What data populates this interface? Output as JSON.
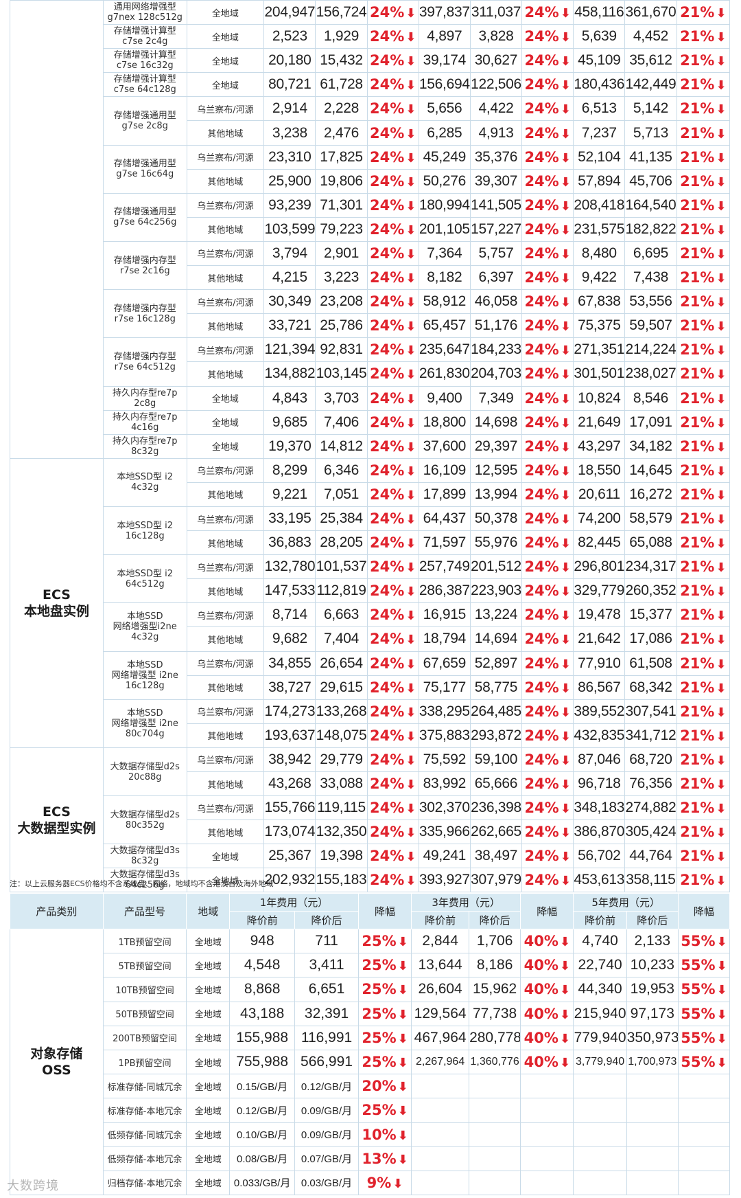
{
  "ecs_groups": [
    {
      "category": "",
      "rows": [
        {
          "model": "通用网络增强型\ng7nex 128c512g",
          "region": "全地域",
          "v": [
            "204,947",
            "156,724",
            "24%",
            "397,837",
            "311,037",
            "24%",
            "458,116",
            "361,670",
            "21%"
          ]
        },
        {
          "model": "存储增强计算型\nc7se 2c4g",
          "region": "全地域",
          "v": [
            "2,523",
            "1,929",
            "24%",
            "4,897",
            "3,828",
            "24%",
            "5,639",
            "4,452",
            "21%"
          ]
        },
        {
          "model": "存储增强计算型\nc7se 16c32g",
          "region": "全地域",
          "v": [
            "20,180",
            "15,432",
            "24%",
            "39,174",
            "30,627",
            "24%",
            "45,109",
            "35,612",
            "21%"
          ]
        },
        {
          "model": "存储增强计算型\nc7se 64c128g",
          "region": "全地域",
          "v": [
            "80,721",
            "61,728",
            "24%",
            "156,694",
            "122,506",
            "24%",
            "180,436",
            "142,449",
            "21%"
          ]
        },
        {
          "model": "存储增强通用型\ng7se 2c8g",
          "region": "乌兰察布/河源",
          "v": [
            "2,914",
            "2,228",
            "24%",
            "5,656",
            "4,422",
            "24%",
            "6,513",
            "5,142",
            "21%"
          ]
        },
        {
          "model": "",
          "region": "其他地域",
          "v": [
            "3,238",
            "2,476",
            "24%",
            "6,285",
            "4,913",
            "24%",
            "7,237",
            "5,713",
            "21%"
          ]
        },
        {
          "model": "存储增强通用型\ng7se 16c64g",
          "region": "乌兰察布/河源",
          "v": [
            "23,310",
            "17,825",
            "24%",
            "45,249",
            "35,376",
            "24%",
            "52,104",
            "41,135",
            "21%"
          ]
        },
        {
          "model": "",
          "region": "其他地域",
          "v": [
            "25,900",
            "19,806",
            "24%",
            "50,276",
            "39,307",
            "24%",
            "57,894",
            "45,706",
            "21%"
          ]
        },
        {
          "model": "存储增强通用型\ng7se 64c256g",
          "region": "乌兰察布/河源",
          "v": [
            "93,239",
            "71,301",
            "24%",
            "180,994",
            "141,505",
            "24%",
            "208,418",
            "164,540",
            "21%"
          ]
        },
        {
          "model": "",
          "region": "其他地域",
          "v": [
            "103,599",
            "79,223",
            "24%",
            "201,105",
            "157,227",
            "24%",
            "231,575",
            "182,822",
            "21%"
          ]
        },
        {
          "model": "存储增强内存型\nr7se 2c16g",
          "region": "乌兰察布/河源",
          "v": [
            "3,794",
            "2,901",
            "24%",
            "7,364",
            "5,757",
            "24%",
            "8,480",
            "6,695",
            "21%"
          ]
        },
        {
          "model": "",
          "region": "其他地域",
          "v": [
            "4,215",
            "3,223",
            "24%",
            "8,182",
            "6,397",
            "24%",
            "9,422",
            "7,438",
            "21%"
          ]
        },
        {
          "model": "存储增强内存型\nr7se 16c128g",
          "region": "乌兰察布/河源",
          "v": [
            "30,349",
            "23,208",
            "24%",
            "58,912",
            "46,058",
            "24%",
            "67,838",
            "53,556",
            "21%"
          ]
        },
        {
          "model": "",
          "region": "其他地域",
          "v": [
            "33,721",
            "25,786",
            "24%",
            "65,457",
            "51,176",
            "24%",
            "75,375",
            "59,507",
            "21%"
          ]
        },
        {
          "model": "存储增强内存型\nr7se 64c512g",
          "region": "乌兰察布/河源",
          "v": [
            "121,394",
            "92,831",
            "24%",
            "235,647",
            "184,233",
            "24%",
            "271,351",
            "214,224",
            "21%"
          ]
        },
        {
          "model": "",
          "region": "其他地域",
          "v": [
            "134,882",
            "103,145",
            "24%",
            "261,830",
            "204,703",
            "24%",
            "301,501",
            "238,027",
            "21%"
          ]
        },
        {
          "model": "持久内存型re7p\n2c8g",
          "region": "全地域",
          "v": [
            "4,843",
            "3,703",
            "24%",
            "9,400",
            "7,349",
            "24%",
            "10,824",
            "8,546",
            "21%"
          ]
        },
        {
          "model": "持久内存型re7p\n4c16g",
          "region": "全地域",
          "v": [
            "9,685",
            "7,406",
            "24%",
            "18,800",
            "14,698",
            "24%",
            "21,649",
            "17,091",
            "21%"
          ]
        },
        {
          "model": "持久内存型re7p\n8c32g",
          "region": "全地域",
          "v": [
            "19,370",
            "14,812",
            "24%",
            "37,600",
            "29,397",
            "24%",
            "43,297",
            "34,182",
            "21%"
          ]
        }
      ]
    },
    {
      "category": "ECS\n本地盘实例",
      "rows": [
        {
          "model": "本地SSD型 i2\n4c32g",
          "region": "乌兰察布/河源",
          "v": [
            "8,299",
            "6,346",
            "24%",
            "16,109",
            "12,595",
            "24%",
            "18,550",
            "14,645",
            "21%"
          ]
        },
        {
          "model": "",
          "region": "其他地域",
          "v": [
            "9,221",
            "7,051",
            "24%",
            "17,899",
            "13,994",
            "24%",
            "20,611",
            "16,272",
            "21%"
          ]
        },
        {
          "model": "本地SSD型 i2\n16c128g",
          "region": "乌兰察布/河源",
          "v": [
            "33,195",
            "25,384",
            "24%",
            "64,437",
            "50,378",
            "24%",
            "74,200",
            "58,579",
            "21%"
          ]
        },
        {
          "model": "",
          "region": "其他地域",
          "v": [
            "36,883",
            "28,205",
            "24%",
            "71,597",
            "55,976",
            "24%",
            "82,445",
            "65,088",
            "21%"
          ]
        },
        {
          "model": "本地SSD型 i2\n64c512g",
          "region": "乌兰察布/河源",
          "v": [
            "132,780",
            "101,537",
            "24%",
            "257,749",
            "201,512",
            "24%",
            "296,801",
            "234,317",
            "21%"
          ]
        },
        {
          "model": "",
          "region": "其他地域",
          "v": [
            "147,533",
            "112,819",
            "24%",
            "286,387",
            "223,903",
            "24%",
            "329,779",
            "260,352",
            "21%"
          ]
        },
        {
          "model": "本地SSD\n网络增强型i2ne\n4c32g",
          "region": "乌兰察布/河源",
          "v": [
            "8,714",
            "6,663",
            "24%",
            "16,915",
            "13,224",
            "24%",
            "19,478",
            "15,377",
            "21%"
          ]
        },
        {
          "model": "",
          "region": "其他地域",
          "v": [
            "9,682",
            "7,404",
            "24%",
            "18,794",
            "14,694",
            "24%",
            "21,642",
            "17,086",
            "21%"
          ]
        },
        {
          "model": "本地SSD\n网络增强型 i2ne\n16c128g",
          "region": "乌兰察布/河源",
          "v": [
            "34,855",
            "26,654",
            "24%",
            "67,659",
            "52,897",
            "24%",
            "77,910",
            "61,508",
            "21%"
          ]
        },
        {
          "model": "",
          "region": "其他地域",
          "v": [
            "38,727",
            "29,615",
            "24%",
            "75,177",
            "58,775",
            "24%",
            "86,567",
            "68,342",
            "21%"
          ]
        },
        {
          "model": "本地SSD\n网络增强型 i2ne\n80c704g",
          "region": "乌兰察布/河源",
          "v": [
            "174,273",
            "133,268",
            "24%",
            "338,295",
            "264,485",
            "24%",
            "389,552",
            "307,541",
            "21%"
          ]
        },
        {
          "model": "",
          "region": "其他地域",
          "v": [
            "193,637",
            "148,075",
            "24%",
            "375,883",
            "293,872",
            "24%",
            "432,835",
            "341,712",
            "21%"
          ]
        }
      ]
    },
    {
      "category": "ECS\n大数据型实例",
      "rows": [
        {
          "model": "大数据存储型d2s\n20c88g",
          "region": "乌兰察布/河源",
          "v": [
            "38,942",
            "29,779",
            "24%",
            "75,592",
            "59,100",
            "24%",
            "87,046",
            "68,720",
            "21%"
          ]
        },
        {
          "model": "",
          "region": "其他地域",
          "v": [
            "43,268",
            "33,088",
            "24%",
            "83,992",
            "65,666",
            "24%",
            "96,718",
            "76,356",
            "21%"
          ]
        },
        {
          "model": "大数据存储型d2s\n80c352g",
          "region": "乌兰察布/河源",
          "v": [
            "155,766",
            "119,115",
            "24%",
            "302,370",
            "236,398",
            "24%",
            "348,183",
            "274,882",
            "21%"
          ]
        },
        {
          "model": "",
          "region": "其他地域",
          "v": [
            "173,074",
            "132,350",
            "24%",
            "335,966",
            "262,665",
            "24%",
            "386,870",
            "305,424",
            "21%"
          ]
        },
        {
          "model": "大数据存储型d3s\n8c32g",
          "region": "全地域",
          "v": [
            "25,367",
            "19,398",
            "24%",
            "49,241",
            "38,497",
            "24%",
            "56,702",
            "44,764",
            "21%"
          ]
        },
        {
          "model": "大数据存储型d3s\n64c256g",
          "region": "全地域",
          "v": [
            "202,932",
            "155,183",
            "24%",
            "393,927",
            "307,979",
            "24%",
            "453,613",
            "358,115",
            "21%"
          ]
        }
      ]
    }
  ],
  "note": "注：以上云服务器ECS价格均不含系统盘、网络，地域均不含港澳台及海外地域",
  "oss": {
    "headers": {
      "category": "产品类别",
      "model": "产品型号",
      "region": "地域",
      "y1": "1年费用（元）",
      "y3": "3年费用（元）",
      "y5": "5年费用（元）",
      "before": "降价前",
      "after": "降价后",
      "drop": "降幅"
    },
    "category": "对象存储\nOSS",
    "rows": [
      {
        "model": "1TB预留空间",
        "region": "全地域",
        "v": [
          "948",
          "711",
          "25%",
          "2,844",
          "1,706",
          "40%",
          "4,740",
          "2,133",
          "55%"
        ]
      },
      {
        "model": "5TB预留空间",
        "region": "全地域",
        "v": [
          "4,548",
          "3,411",
          "25%",
          "13,644",
          "8,186",
          "40%",
          "22,740",
          "10,233",
          "55%"
        ]
      },
      {
        "model": "10TB预留空间",
        "region": "全地域",
        "v": [
          "8,868",
          "6,651",
          "25%",
          "26,604",
          "15,962",
          "40%",
          "44,340",
          "19,953",
          "55%"
        ]
      },
      {
        "model": "50TB预留空间",
        "region": "全地域",
        "v": [
          "43,188",
          "32,391",
          "25%",
          "129,564",
          "77,738",
          "40%",
          "215,940",
          "97,173",
          "55%"
        ]
      },
      {
        "model": "200TB预留空间",
        "region": "全地域",
        "v": [
          "155,988",
          "116,991",
          "25%",
          "467,964",
          "280,778",
          "40%",
          "779,940",
          "350,973",
          "55%"
        ]
      },
      {
        "model": "1PB预留空间",
        "region": "全地域",
        "v": [
          "755,988",
          "566,991",
          "25%",
          "2,267,964",
          "1,360,776",
          "40%",
          "3,779,940",
          "1,700,973",
          "55%"
        ]
      },
      {
        "model": "标准存储-同城冗余",
        "region": "全地域",
        "v": [
          "0.15/GB/月",
          "0.12/GB/月",
          "20%"
        ]
      },
      {
        "model": "标准存储-本地冗余",
        "region": "全地域",
        "v": [
          "0.12/GB/月",
          "0.09/GB/月",
          "25%"
        ]
      },
      {
        "model": "低频存储-同城冗余",
        "region": "全地域",
        "v": [
          "0.10/GB/月",
          "0.09/GB/月",
          "10%"
        ]
      },
      {
        "model": "低频存储-本地冗余",
        "region": "全地域",
        "v": [
          "0.08/GB/月",
          "0.07/GB/月",
          "13%"
        ]
      },
      {
        "model": "归档存储-本地冗余",
        "region": "全地域",
        "v": [
          "0.033/GB/月",
          "0.03/GB/月",
          "9%"
        ]
      }
    ]
  },
  "watermark": "大数跨境",
  "icons": {
    "drop_arrow": "down-arrow-icon"
  },
  "colors": {
    "accent": "#e0222c",
    "header_bg": "#d8eaf3",
    "border": "#c9dbe8"
  }
}
